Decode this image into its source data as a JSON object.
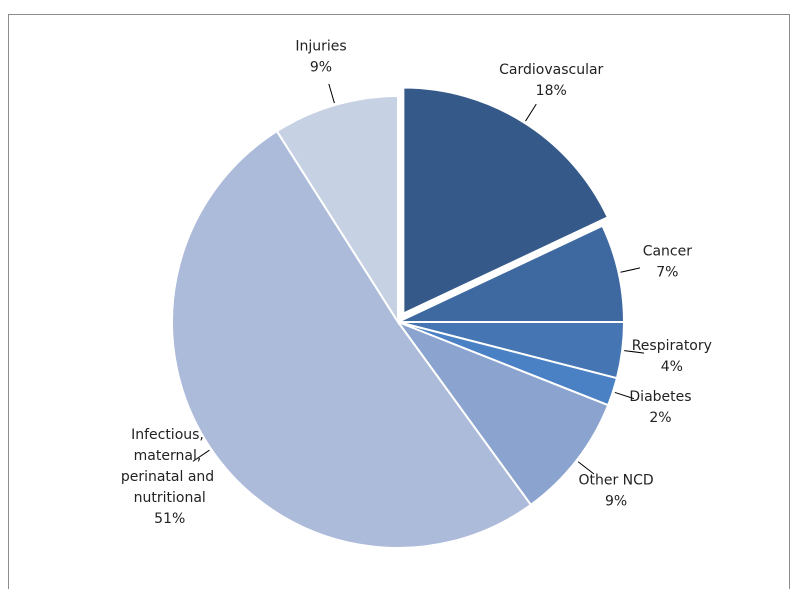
{
  "chart_data": {
    "type": "pie",
    "categories": [
      "Cardiovascular",
      "Cancer",
      "Respiratory",
      "Diabetes",
      "Other NCD",
      "Infectious, maternal, perinatal and nutritional",
      "Injuries"
    ],
    "values": [
      18,
      7,
      4,
      2,
      9,
      51,
      9
    ],
    "value_labels": [
      "18%",
      "7%",
      "4%",
      "2%",
      "9%",
      "51%",
      "9%"
    ],
    "colors": [
      "#355a8a",
      "#3e69a0",
      "#4576b3",
      "#4a80c4",
      "#8aa4cf",
      "#acbbd9",
      "#c6d1e4"
    ]
  }
}
